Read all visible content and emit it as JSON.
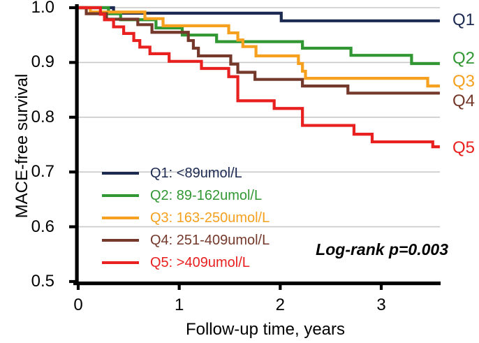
{
  "chart_data": {
    "type": "line",
    "variant": "kaplan-meier-step-survival-curves",
    "title": "",
    "xlabel": "Follow-up time, years",
    "ylabel": "MACE-free survival",
    "annotation": "Log-rank p=0.003",
    "xlim": [
      0,
      3.58
    ],
    "ylim": [
      0.5,
      1.0
    ],
    "end_time": 3.58,
    "grid": "horizontal gridlines every 0.1",
    "gridline_color": "#C9C9C9",
    "axis_color": "#000000",
    "legend_position": "inside lower-left",
    "x_ticks": {
      "values": [
        0,
        1,
        2,
        3
      ],
      "labels": [
        "0",
        "1",
        "2",
        "3"
      ]
    },
    "y_ticks": {
      "values": [
        1.0,
        0.9,
        0.8,
        0.7,
        0.6,
        0.5
      ],
      "labels": [
        "1.0",
        "0.9",
        "0.8",
        "0.7",
        "0.6",
        "0.5"
      ]
    },
    "series": [
      {
        "name": "Q1",
        "legend_label": "Q1: <89umol/L",
        "right_label": "Q1",
        "color": "#1C2A52",
        "start_value": 1.0,
        "final_value": 0.976,
        "steps": [
          [
            0.35,
            0.99
          ],
          [
            2.01,
            0.976
          ]
        ]
      },
      {
        "name": "Q2",
        "legend_label": "Q2: 89-162umol/L",
        "right_label": "Q2",
        "color": "#319733",
        "start_value": 1.0,
        "final_value": 0.898,
        "steps": [
          [
            0.3,
            0.989
          ],
          [
            0.42,
            0.978
          ],
          [
            0.77,
            0.963
          ],
          [
            1.03,
            0.95
          ],
          [
            1.37,
            0.938
          ],
          [
            2.22,
            0.926
          ],
          [
            2.7,
            0.913
          ],
          [
            3.3,
            0.898
          ]
        ]
      },
      {
        "name": "Q3",
        "legend_label": "Q3: 163-250umol/L",
        "right_label": "Q3",
        "color": "#F5A01E",
        "start_value": 1.0,
        "final_value": 0.857,
        "steps": [
          [
            0.12,
            0.992
          ],
          [
            0.66,
            0.98
          ],
          [
            0.84,
            0.967
          ],
          [
            1.49,
            0.954
          ],
          [
            1.58,
            0.941
          ],
          [
            1.63,
            0.929
          ],
          [
            1.76,
            0.912
          ],
          [
            2.18,
            0.898
          ],
          [
            2.22,
            0.884
          ],
          [
            2.25,
            0.871
          ],
          [
            3.46,
            0.857
          ]
        ]
      },
      {
        "name": "Q4",
        "legend_label": "Q4: 251-409umol/L",
        "right_label": "Q4",
        "color": "#74392B",
        "start_value": 1.0,
        "final_value": 0.844,
        "steps": [
          [
            0.08,
            0.989
          ],
          [
            0.28,
            0.979
          ],
          [
            0.59,
            0.969
          ],
          [
            0.73,
            0.955
          ],
          [
            1.09,
            0.94
          ],
          [
            1.14,
            0.926
          ],
          [
            1.19,
            0.912
          ],
          [
            1.51,
            0.897
          ],
          [
            1.58,
            0.882
          ],
          [
            1.75,
            0.869
          ],
          [
            2.22,
            0.857
          ],
          [
            2.67,
            0.844
          ]
        ]
      },
      {
        "name": "Q5",
        "legend_label": "Q5: >409umol/L",
        "right_label": "Q5",
        "color": "#E8201F",
        "start_value": 1.0,
        "final_value": 0.746,
        "steps": [
          [
            0.22,
            0.988
          ],
          [
            0.26,
            0.978
          ],
          [
            0.35,
            0.965
          ],
          [
            0.45,
            0.953
          ],
          [
            0.55,
            0.94
          ],
          [
            0.61,
            0.928
          ],
          [
            0.71,
            0.916
          ],
          [
            0.9,
            0.902
          ],
          [
            1.22,
            0.889
          ],
          [
            1.49,
            0.874
          ],
          [
            1.58,
            0.83
          ],
          [
            1.94,
            0.816
          ],
          [
            2.22,
            0.785
          ],
          [
            2.73,
            0.769
          ],
          [
            2.91,
            0.755
          ],
          [
            3.51,
            0.746
          ]
        ]
      }
    ]
  }
}
